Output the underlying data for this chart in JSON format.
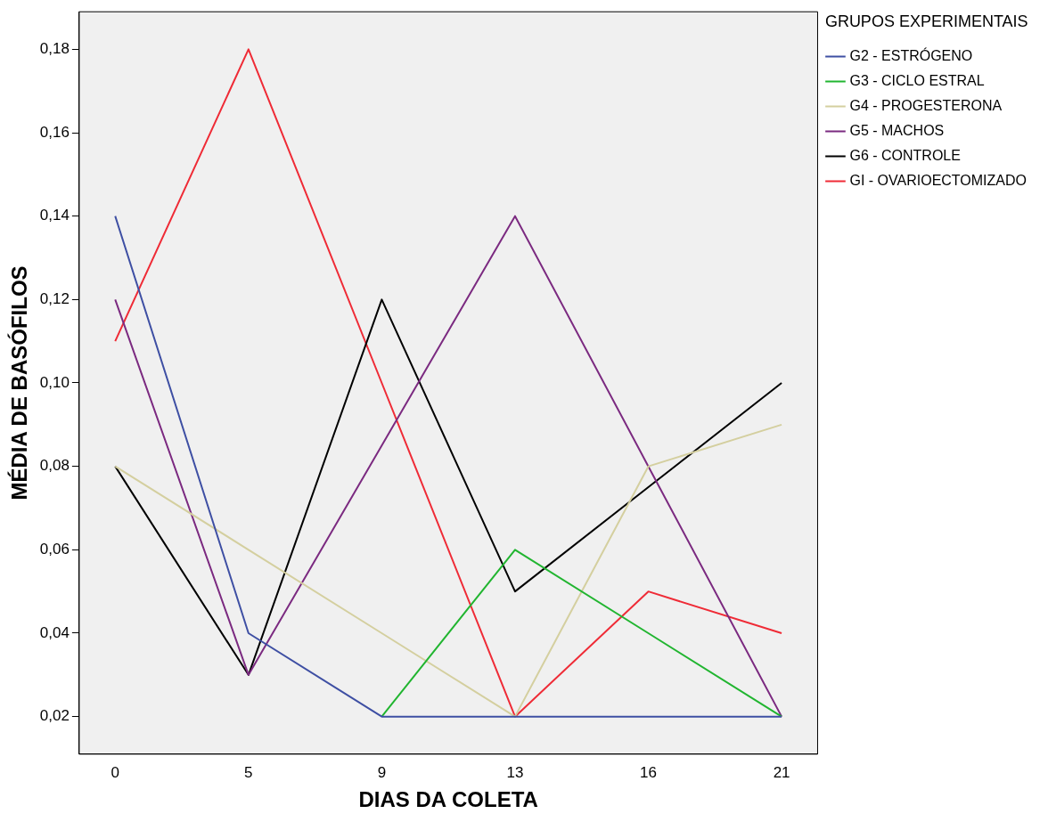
{
  "chart_data": {
    "type": "line",
    "xlabel": "DIAS DA COLETA",
    "ylabel": "MÉDIA DE BASÓFILOS",
    "legend_title": "GRUPOS EXPERIMENTAIS",
    "legend": "right",
    "marker": "none",
    "grid": false,
    "categories": [
      "0",
      "5",
      "9",
      "13",
      "16",
      "21"
    ],
    "ylim": [
      0.011,
      0.189
    ],
    "yticks": [
      {
        "value": 0.02,
        "label": "0,02"
      },
      {
        "value": 0.04,
        "label": "0,04"
      },
      {
        "value": 0.06,
        "label": "0,06"
      },
      {
        "value": 0.08,
        "label": "0,08"
      },
      {
        "value": 0.1,
        "label": "0,10"
      },
      {
        "value": 0.12,
        "label": "0,12"
      },
      {
        "value": 0.14,
        "label": "0,14"
      },
      {
        "value": 0.16,
        "label": "0,16"
      },
      {
        "value": 0.18,
        "label": "0,18"
      }
    ],
    "series": [
      {
        "name": "G2 - ESTRÓGENO",
        "color": "#3e4fa3",
        "values": [
          0.14,
          0.04,
          0.02,
          0.02,
          0.02,
          0.02
        ]
      },
      {
        "name": "G3 - CICLO ESTRAL",
        "color": "#21b530",
        "values": [
          null,
          null,
          0.02,
          0.06,
          0.04,
          0.02
        ]
      },
      {
        "name": "G4 - PROGESTERONA",
        "color": "#d4cf9f",
        "values": [
          0.08,
          0.06,
          0.04,
          0.02,
          0.08,
          0.09
        ]
      },
      {
        "name": "G5 - MACHOS",
        "color": "#7b2a80",
        "values": [
          0.12,
          0.03,
          0.085,
          0.14,
          0.08,
          0.02
        ]
      },
      {
        "name": "G6 - CONTROLE",
        "color": "#000000",
        "values": [
          0.08,
          0.03,
          0.12,
          0.05,
          0.075,
          0.1
        ]
      },
      {
        "name": "GI - OVARIOECTOMIZADO",
        "color": "#ef2b36",
        "values": [
          0.11,
          0.18,
          0.1,
          0.02,
          0.05,
          0.04
        ]
      }
    ]
  }
}
